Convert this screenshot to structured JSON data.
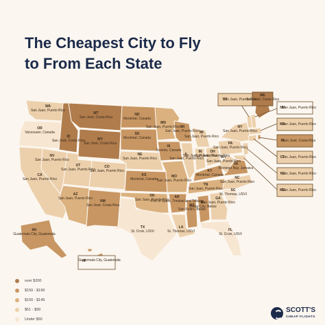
{
  "title_line1": "The Cheapest City to Fly",
  "title_line2": "to From Each State",
  "legend": [
    {
      "label": "over $200",
      "color": "#b07c4c"
    },
    {
      "label": "$150 - $199",
      "color": "#c89663"
    },
    {
      "label": "$100 - $149",
      "color": "#dbb17f"
    },
    {
      "label": "$51 - $99",
      "color": "#ecd0ac"
    },
    {
      "label": "Under $50",
      "color": "#f7e6d1"
    }
  ],
  "states": {
    "WA": {
      "abbr": "WA",
      "city": "San Juan, Puerto Rico"
    },
    "OR": {
      "abbr": "OR",
      "city": "Vancouver, Canada"
    },
    "CA": {
      "abbr": "CA",
      "city": "San Juan, Puerto Rico"
    },
    "ID": {
      "abbr": "ID",
      "city": "San José, Costa Rica"
    },
    "NV": {
      "abbr": "NV",
      "city": "San Juan, Puerto Rico"
    },
    "MT": {
      "abbr": "MT",
      "city": "San José, Costa Rica"
    },
    "WY": {
      "abbr": "WY",
      "city": "San José, Costa Rica"
    },
    "UT": {
      "abbr": "UT",
      "city": "San Juan, Puerto Rico"
    },
    "AZ": {
      "abbr": "AZ",
      "city": "San Juan, Puerto Rico"
    },
    "CO": {
      "abbr": "CO",
      "city": "San Juan, Puerto Rico"
    },
    "NM": {
      "abbr": "NM",
      "city": "San José, Costa Rica"
    },
    "ND": {
      "abbr": "ND",
      "city": "Montréal, Canada"
    },
    "SD": {
      "abbr": "SD",
      "city": "Montréal, Canada"
    },
    "NE": {
      "abbr": "NE",
      "city": "San Juan, Puerto Rico"
    },
    "KS": {
      "abbr": "KS",
      "city": "Montréal, Canada"
    },
    "OK": {
      "abbr": "OK",
      "city": "San Juan, Puerto Rico"
    },
    "TX": {
      "abbr": "TX",
      "city": "St. Croix, USVI"
    },
    "MN": {
      "abbr": "MN",
      "city": "San Juan, Puerto Rico"
    },
    "IA": {
      "abbr": "IA",
      "city": "Toronto, Canada"
    },
    "MO": {
      "abbr": "MO",
      "city": "San Juan, Puerto Rico"
    },
    "AR": {
      "abbr": "AR",
      "city": "Port of Spain, Trinidad and Tobago"
    },
    "LA": {
      "abbr": "LA",
      "city": "St. Thomas, USVI"
    },
    "WI": {
      "abbr": "WI",
      "city": "San Juan, Puerto Rico"
    },
    "IL": {
      "abbr": "IL",
      "city": "San Juan, Puerto Rico"
    },
    "MS": {
      "abbr": "MS",
      "city": "San Pedro, Belize"
    },
    "MI": {
      "abbr": "MI",
      "city": "San Juan, Puerto Rico"
    },
    "IN": {
      "abbr": "IN",
      "city": "San Juan, Puerto Rico"
    },
    "KY": {
      "abbr": "KY",
      "city": "Montréal, Canada"
    },
    "TN": {
      "abbr": "TN",
      "city": "San Juan, Puerto Rico"
    },
    "AL": {
      "abbr": "AL",
      "city": "Belize City, Belize"
    },
    "GA": {
      "abbr": "GA",
      "city": "San Juan, Puerto Rico"
    },
    "FL": {
      "abbr": "FL",
      "city": "St. Croix, USVI"
    },
    "SC": {
      "abbr": "SC",
      "city": "St. Thomas, USVI"
    },
    "NC": {
      "abbr": "NC",
      "city": "San Juan, Puerto Rico"
    },
    "VA": {
      "abbr": "VA",
      "city": "Montego Bay, Jamaica"
    },
    "WV": {
      "abbr": "WV",
      "city": "San Juan, Puerto Rico"
    },
    "OH": {
      "abbr": "OH",
      "city": "San Juan, Puerto Rico"
    },
    "PA": {
      "abbr": "PA",
      "city": "San Juan, Puerto Rico"
    },
    "NY": {
      "abbr": "NY",
      "city": "San Juan, Puerto Rico"
    },
    "ME": {
      "abbr": "ME",
      "city": "San José, Costa Rica"
    },
    "AK": {
      "abbr": "AK",
      "city": "Guatemala City, Guatemala"
    },
    "HI": {
      "abbr": "HI",
      "city": "Guatemala City, Guatemala"
    }
  },
  "callouts": {
    "VT": {
      "abbr": "VT",
      "city": "San Juan, Puerto Rico"
    },
    "NH": {
      "abbr": "NH",
      "city": "San Juan, Puerto Rico"
    },
    "MA": {
      "abbr": "MA",
      "city": "San Juan, Puerto Rico"
    },
    "RI": {
      "abbr": "RI",
      "city": "San José, Costa Rica"
    },
    "CT": {
      "abbr": "CT",
      "city": "San Juan, Puerto Rico"
    },
    "NJ": {
      "abbr": "NJ",
      "city": "San Juan, Puerto Rico"
    },
    "MD": {
      "abbr": "MD",
      "city": "San Juan, Puerto Rico"
    }
  },
  "logo": {
    "name": "SCOTT'S",
    "sub": "CHEAP FLIGHTS"
  }
}
